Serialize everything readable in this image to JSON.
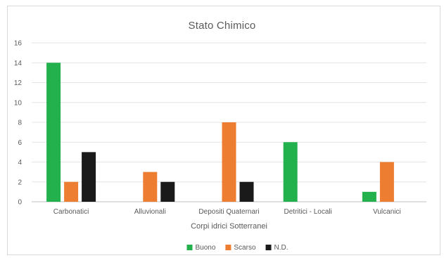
{
  "chart_data": {
    "type": "bar",
    "title": "Stato Chimico",
    "xlabel": "Corpi idrici Sotterranei",
    "ylabel": "",
    "ylim": [
      0,
      16
    ],
    "yticks": [
      "0",
      "2",
      "4",
      "6",
      "8",
      "10",
      "12",
      "14",
      "16"
    ],
    "categories": [
      "Carbonatici",
      "Alluvionali",
      "Depositi Quaternari",
      "Detritici - Locali",
      "Vulcanici"
    ],
    "series": [
      {
        "name": "Buono",
        "color": "#22b14c",
        "values": [
          14,
          0,
          0,
          6,
          1
        ]
      },
      {
        "name": "Scarso",
        "color": "#ed7d31",
        "values": [
          2,
          3,
          8,
          0,
          4
        ]
      },
      {
        "name": "N.D.",
        "color": "#1a1a1a",
        "values": [
          5,
          2,
          2,
          0,
          0
        ]
      }
    ],
    "grid": true,
    "legend_position": "bottom"
  }
}
